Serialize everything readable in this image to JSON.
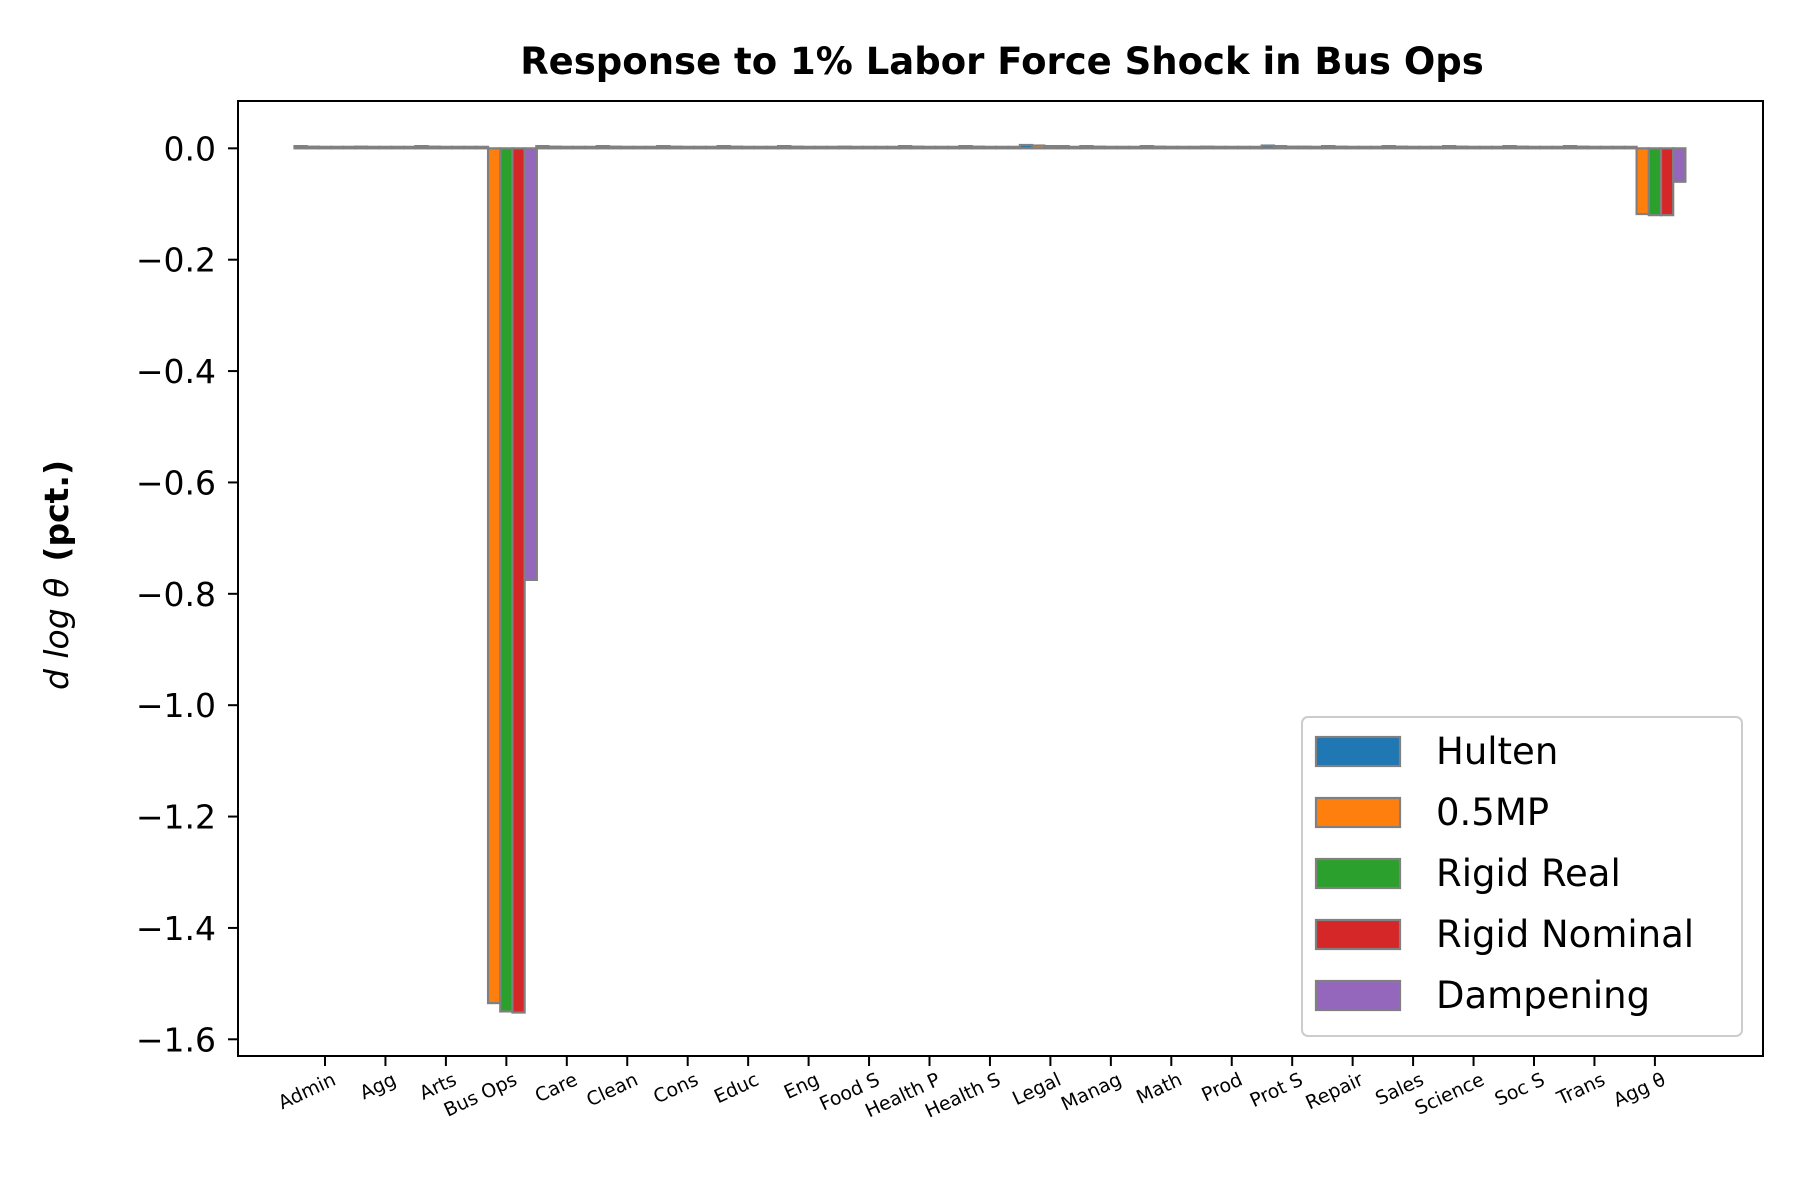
{
  "chart_data": {
    "type": "bar",
    "title": "Response to 1% Labor Force Shock in Bus Ops",
    "ylabel": {
      "math": "d log θ",
      "text": "(pct.)"
    },
    "xlabel": "",
    "categories": [
      "Admin",
      "Agg",
      "Arts",
      "Bus Ops",
      "Care",
      "Clean",
      "Cons",
      "Educ",
      "Eng",
      "Food S",
      "Health P",
      "Health S",
      "Legal",
      "Manag",
      "Math",
      "Prod",
      "Prot S",
      "Repair",
      "Sales",
      "Science",
      "Soc S",
      "Trans",
      "Agg θ"
    ],
    "series": [
      {
        "name": "Hulten",
        "color": "#1f77b4",
        "values": [
          0.004,
          0.003,
          0.004,
          0.0,
          0.004,
          0.004,
          0.004,
          0.004,
          0.004,
          0.003,
          0.004,
          0.004,
          0.006,
          0.004,
          0.004,
          0.003,
          0.005,
          0.004,
          0.004,
          0.004,
          0.004,
          0.004,
          0.0
        ]
      },
      {
        "name": "0.5MP",
        "color": "#ff7f0e",
        "values": [
          0.003,
          0.002,
          0.003,
          -1.535,
          0.003,
          0.003,
          0.003,
          0.003,
          0.003,
          0.002,
          0.003,
          0.003,
          0.005,
          0.003,
          0.003,
          0.002,
          0.004,
          0.003,
          0.003,
          0.003,
          0.003,
          0.003,
          -0.118
        ]
      },
      {
        "name": "Rigid Real",
        "color": "#2ca02c",
        "values": [
          0.002,
          0.002,
          0.002,
          -1.55,
          0.002,
          0.002,
          0.002,
          0.002,
          0.002,
          0.002,
          0.002,
          0.002,
          0.004,
          0.002,
          0.002,
          0.002,
          0.003,
          0.002,
          0.002,
          0.002,
          0.002,
          0.002,
          -0.12
        ]
      },
      {
        "name": "Rigid Nominal",
        "color": "#d62728",
        "values": [
          0.002,
          0.002,
          0.002,
          -1.552,
          0.002,
          0.002,
          0.002,
          0.002,
          0.002,
          0.002,
          0.002,
          0.002,
          0.004,
          0.002,
          0.002,
          0.002,
          0.003,
          0.002,
          0.002,
          0.002,
          0.002,
          0.002,
          -0.12
        ]
      },
      {
        "name": "Dampening",
        "color": "#9467bd",
        "values": [
          0.001,
          0.001,
          0.001,
          -0.775,
          0.001,
          0.001,
          0.001,
          0.001,
          0.001,
          0.001,
          0.001,
          0.001,
          0.002,
          0.001,
          0.001,
          0.001,
          0.002,
          0.001,
          0.001,
          0.001,
          0.001,
          0.001,
          -0.06
        ]
      }
    ],
    "yticks": [
      "0.0",
      "−0.2",
      "−0.4",
      "−0.6",
      "−0.8",
      "−1.0",
      "−1.2",
      "−1.4",
      "−1.6"
    ],
    "ytick_values": [
      0.0,
      -0.2,
      -0.4,
      -0.6,
      -0.8,
      -1.0,
      -1.2,
      -1.4,
      -1.6
    ],
    "ylim": [
      -1.63,
      0.085
    ],
    "bar_edge_color": "#808080",
    "grid": false,
    "legend_position": "lower right"
  }
}
